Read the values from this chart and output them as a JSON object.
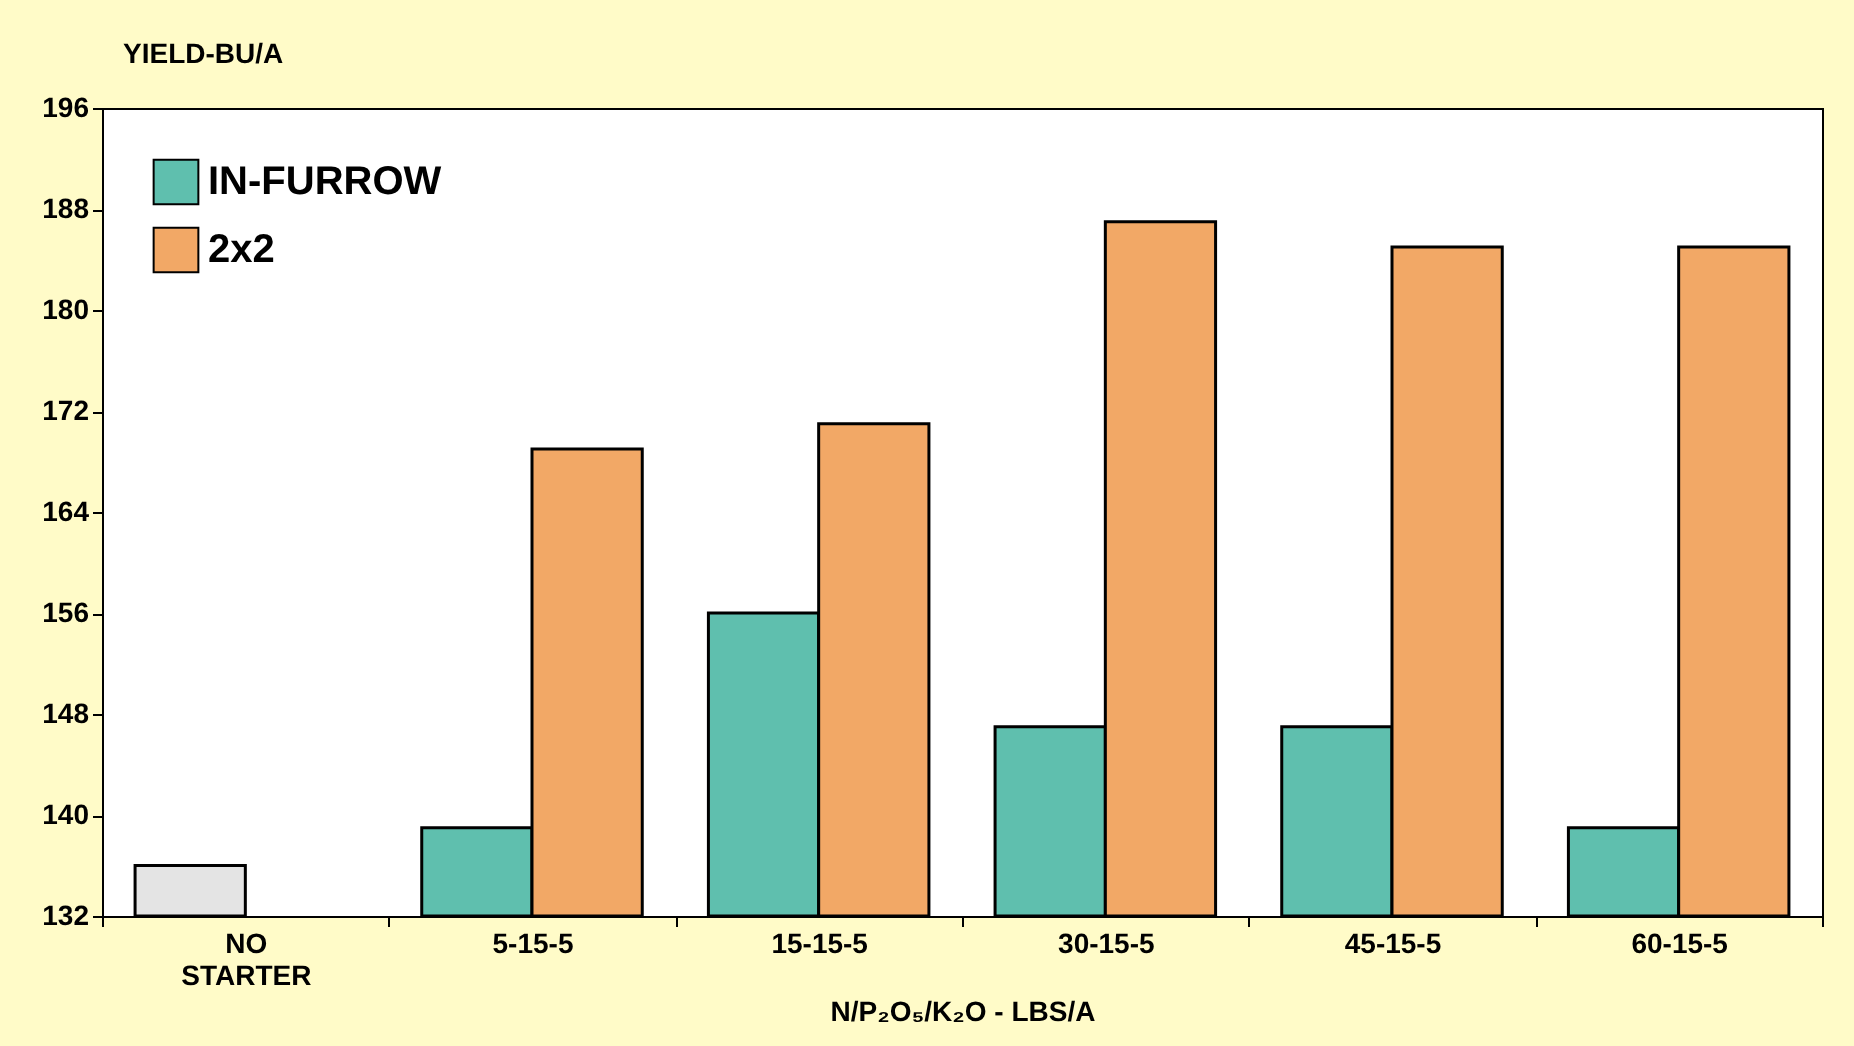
{
  "chart_data": {
    "type": "bar",
    "ylabel": "YIELD-BU/A",
    "xlabel": "N/P₂O₅/K₂O - LBS/A",
    "categories": [
      "NO STARTER",
      "5-15-5",
      "15-15-5",
      "30-15-5",
      "45-15-5",
      "60-15-5"
    ],
    "series": [
      {
        "name": "IN-FURROW",
        "color": "#5fbfae",
        "colors": [
          "#e4e4e4",
          "#5fbfae",
          "#5fbfae",
          "#5fbfae",
          "#5fbfae",
          "#5fbfae"
        ],
        "values": [
          136,
          139,
          156,
          147,
          147,
          139
        ]
      },
      {
        "name": "2x2",
        "color": "#f2a866",
        "values": [
          null,
          169,
          171,
          187,
          185,
          185
        ]
      }
    ],
    "ylim": [
      132,
      196
    ],
    "yticks": [
      132,
      140,
      148,
      156,
      164,
      172,
      180,
      188,
      196
    ],
    "grid": false,
    "legend": "top left"
  }
}
